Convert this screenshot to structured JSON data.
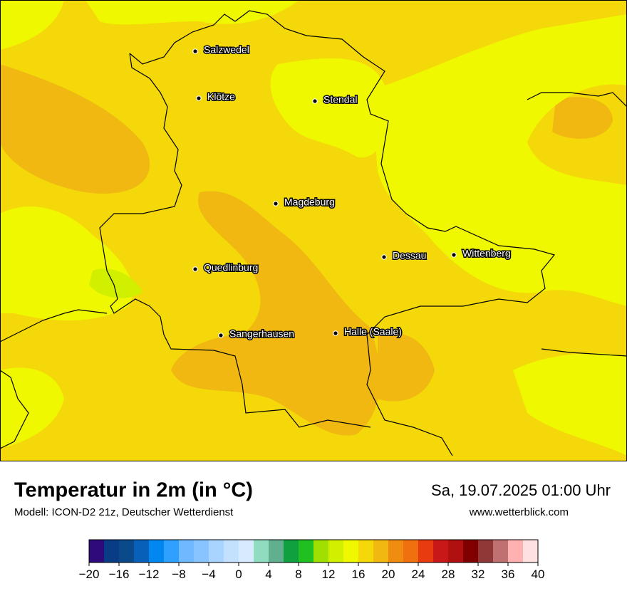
{
  "map": {
    "cities": [
      {
        "name": "Salzwedel"
      },
      {
        "name": "Klötze"
      },
      {
        "name": "Stendal"
      },
      {
        "name": "Magdeburg"
      },
      {
        "name": "Dessau"
      },
      {
        "name": "Wittenberg"
      },
      {
        "name": "Quedlinburg"
      },
      {
        "name": "Sangerhausen"
      },
      {
        "name": "Halle (Saale)"
      }
    ]
  },
  "footer": {
    "title": "Temperatur in 2m (in °C)",
    "subtitle": "Modell: ICON-D2 21z, Deutscher Wetterdienst",
    "datetime": "Sa, 19.07.2025 01:00 Uhr",
    "website": "www.wetterblick.com"
  },
  "colorbar": {
    "bins": [
      -20,
      -18,
      -16,
      -14,
      -12,
      -10,
      -8,
      -6,
      -4,
      -2,
      0,
      2,
      4,
      6,
      8,
      10,
      12,
      14,
      16,
      18,
      20,
      22,
      24,
      26,
      28,
      30,
      32,
      34,
      36,
      38,
      40
    ],
    "colors": [
      "#2e0a7a",
      "#083d85",
      "#0a4a8a",
      "#0860b8",
      "#0088f0",
      "#30a0ff",
      "#70b8ff",
      "#88c4ff",
      "#a8d4ff",
      "#c4e0ff",
      "#d8eaff",
      "#90dcc0",
      "#60b090",
      "#10a040",
      "#20c020",
      "#a0e000",
      "#d0f000",
      "#f0f800",
      "#f4d80a",
      "#f0b810",
      "#f08c10",
      "#f07010",
      "#e83c10",
      "#c81818",
      "#b01010",
      "#800000",
      "#903838",
      "#c07070",
      "#ffb0b0",
      "#ffe0e0"
    ],
    "ticks": [
      {
        "value": -20,
        "label": "−20"
      },
      {
        "value": -16,
        "label": "−16"
      },
      {
        "value": -12,
        "label": "−12"
      },
      {
        "value": -8,
        "label": "−8"
      },
      {
        "value": -4,
        "label": "−4"
      },
      0,
      4,
      8,
      12,
      16,
      20,
      24,
      28,
      32,
      36,
      40
    ]
  }
}
